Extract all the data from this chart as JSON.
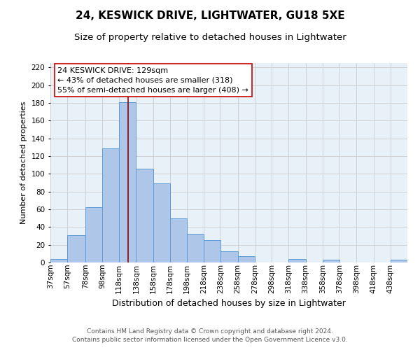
{
  "title": "24, KESWICK DRIVE, LIGHTWATER, GU18 5XE",
  "subtitle": "Size of property relative to detached houses in Lightwater",
  "xlabel": "Distribution of detached houses by size in Lightwater",
  "ylabel": "Number of detached properties",
  "bin_labels": [
    "37sqm",
    "57sqm",
    "78sqm",
    "98sqm",
    "118sqm",
    "138sqm",
    "158sqm",
    "178sqm",
    "198sqm",
    "218sqm",
    "238sqm",
    "258sqm",
    "278sqm",
    "298sqm",
    "318sqm",
    "338sqm",
    "358sqm",
    "378sqm",
    "398sqm",
    "418sqm",
    "438sqm"
  ],
  "bin_edges": [
    37,
    57,
    78,
    98,
    118,
    138,
    158,
    178,
    198,
    218,
    238,
    258,
    278,
    298,
    318,
    338,
    358,
    378,
    398,
    418,
    438,
    458
  ],
  "bar_heights": [
    4,
    31,
    62,
    129,
    181,
    106,
    89,
    50,
    32,
    25,
    13,
    7,
    0,
    0,
    4,
    0,
    3,
    0,
    0,
    0,
    3
  ],
  "bar_color": "#aec6e8",
  "bar_edge_color": "#5b9bd5",
  "vline_x": 129,
  "vline_color": "#8b0000",
  "annotation_text": "24 KESWICK DRIVE: 129sqm\n← 43% of detached houses are smaller (318)\n55% of semi-detached houses are larger (408) →",
  "annotation_box_color": "#ffffff",
  "annotation_box_edge": "#cc0000",
  "ylim": [
    0,
    225
  ],
  "yticks": [
    0,
    20,
    40,
    60,
    80,
    100,
    120,
    140,
    160,
    180,
    200,
    220
  ],
  "grid_color": "#cccccc",
  "bg_color": "#e8f0f8",
  "footer": "Contains HM Land Registry data © Crown copyright and database right 2024.\nContains public sector information licensed under the Open Government Licence v3.0.",
  "title_fontsize": 11,
  "subtitle_fontsize": 9.5,
  "xlabel_fontsize": 9,
  "ylabel_fontsize": 8,
  "tick_fontsize": 7.5,
  "annotation_fontsize": 8,
  "footer_fontsize": 6.5
}
